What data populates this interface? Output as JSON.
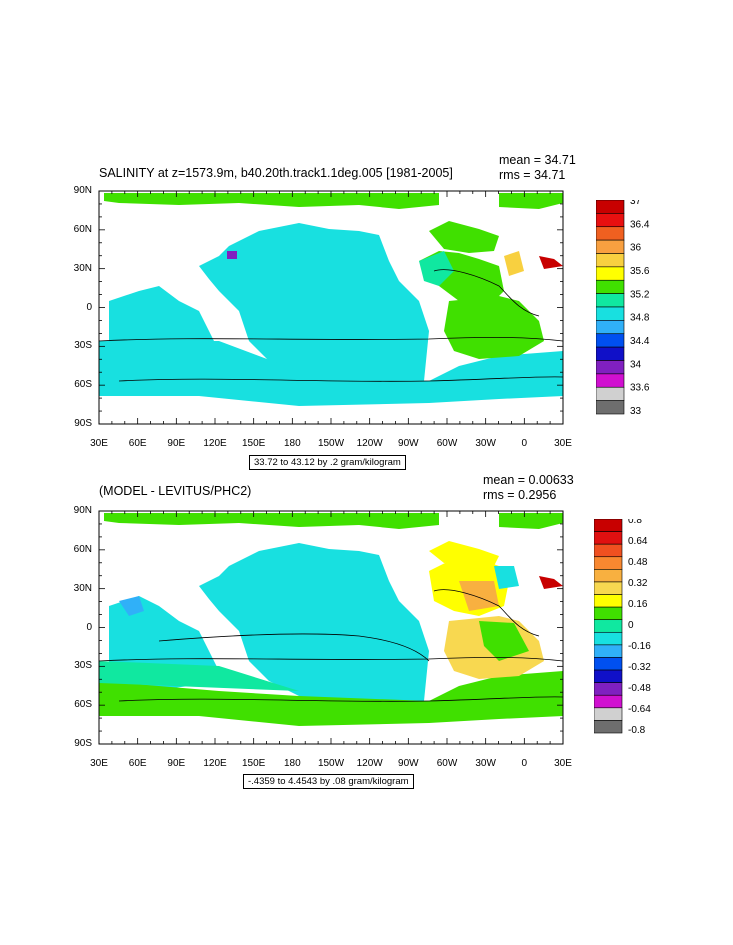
{
  "panels": [
    {
      "title": "SALINITY at z=1573.9m, b40.20th.track1.1deg.005 [1981-2005]",
      "mean": "mean = 34.71",
      "rms": "rms = 34.71",
      "range": "33.72 to 43.12 by .2 gram/kilogram",
      "colorbar": {
        "labels": [
          "37",
          "36.4",
          "36",
          "35.6",
          "35.2",
          "34.8",
          "34.4",
          "34",
          "33.6",
          "33"
        ],
        "colors": [
          "#c80000",
          "#e81010",
          "#f06020",
          "#f8a040",
          "#f8d040",
          "#ffff00",
          "#40e000",
          "#10e8a0",
          "#18e0e0",
          "#30b0f8",
          "#0050f0",
          "#1010c8",
          "#8020c0",
          "#d010d0",
          "#d0d0d0",
          "#6e6e6e"
        ]
      }
    },
    {
      "title": "(MODEL - LEVITUS/PHC2)",
      "mean": "mean = 0.00633",
      "rms": "rms = 0.2956",
      "range": "-.4359 to 4.4543 by .08 gram/kilogram",
      "colorbar": {
        "labels": [
          "0.8",
          "0.64",
          "0.48",
          "0.32",
          "0.16",
          "0",
          "-0.16",
          "-0.32",
          "-0.48",
          "-0.64",
          "-0.8"
        ],
        "colors": [
          "#c80000",
          "#e01010",
          "#f05020",
          "#f88830",
          "#f8b040",
          "#f8d850",
          "#ffff00",
          "#40e000",
          "#10e8a0",
          "#18e0e0",
          "#30b0f8",
          "#0050f0",
          "#1010c8",
          "#8020c0",
          "#d010d0",
          "#d0d0d0",
          "#6e6e6e"
        ]
      }
    }
  ],
  "axes": {
    "lat_labels": [
      "90N",
      "60N",
      "30N",
      "0",
      "30S",
      "60S",
      "90S"
    ],
    "lon_labels": [
      "30E",
      "60E",
      "90E",
      "120E",
      "150E",
      "180",
      "150W",
      "120W",
      "90W",
      "60W",
      "30W",
      "0",
      "30E"
    ]
  }
}
